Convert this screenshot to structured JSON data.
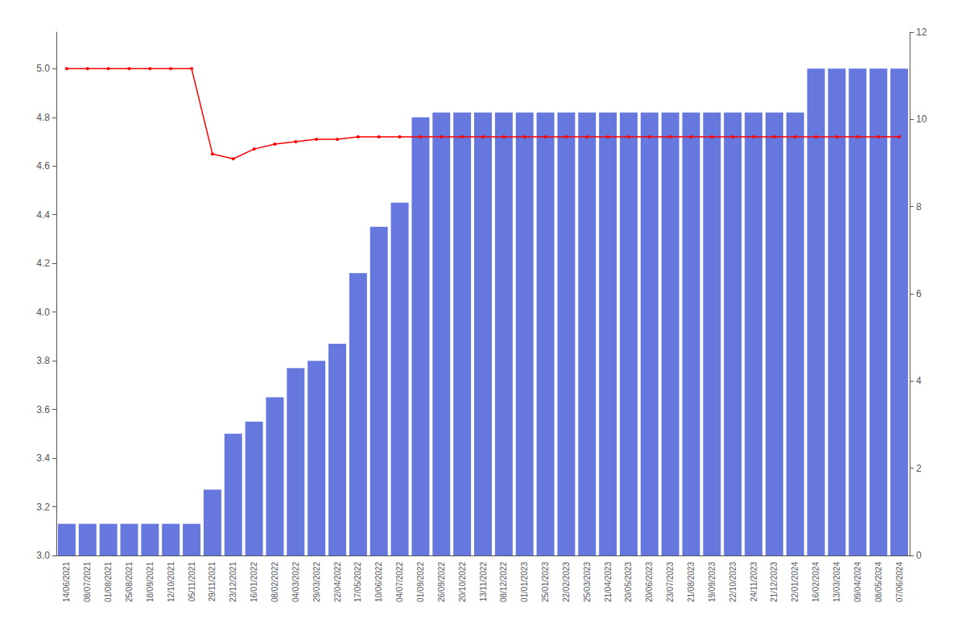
{
  "chart_data": {
    "type": "bar",
    "categories": [
      "14/06/2021",
      "08/07/2021",
      "01/08/2021",
      "25/08/2021",
      "18/09/2021",
      "12/10/2021",
      "05/11/2021",
      "29/11/2021",
      "23/12/2021",
      "16/01/2022",
      "08/02/2022",
      "04/03/2022",
      "29/03/2022",
      "22/04/2022",
      "17/05/2022",
      "10/06/2022",
      "04/07/2022",
      "01/09/2022",
      "26/09/2022",
      "20/10/2022",
      "13/11/2022",
      "08/12/2022",
      "01/01/2023",
      "25/01/2023",
      "22/02/2023",
      "25/03/2023",
      "21/04/2023",
      "20/05/2023",
      "20/06/2023",
      "23/07/2023",
      "21/08/2023",
      "19/09/2023",
      "22/10/2023",
      "24/11/2023",
      "21/12/2023",
      "22/01/2024",
      "16/02/2024",
      "13/03/2024",
      "09/04/2024",
      "08/05/2024",
      "07/06/2024"
    ],
    "series": [
      {
        "type": "bar",
        "color": "#6677dd",
        "values": [
          3.13,
          3.13,
          3.13,
          3.13,
          3.13,
          3.13,
          3.13,
          3.27,
          3.5,
          3.55,
          3.65,
          3.77,
          3.8,
          3.87,
          4.16,
          4.35,
          4.45,
          4.8,
          4.82,
          4.82,
          4.82,
          4.82,
          4.82,
          4.82,
          4.82,
          4.82,
          4.82,
          4.82,
          4.82,
          4.82,
          4.82,
          4.82,
          4.82,
          4.82,
          4.82,
          4.82,
          5.0,
          5.0,
          5.0,
          5.0,
          5.0
        ]
      },
      {
        "type": "line",
        "color": "#ff0000",
        "marker": "circle",
        "values": [
          5.0,
          5.0,
          5.0,
          5.0,
          5.0,
          5.0,
          5.0,
          4.65,
          4.63,
          4.67,
          4.69,
          4.7,
          4.71,
          4.71,
          4.72,
          4.72,
          4.72,
          4.72,
          4.72,
          4.72,
          4.72,
          4.72,
          4.72,
          4.72,
          4.72,
          4.72,
          4.72,
          4.72,
          4.72,
          4.72,
          4.72,
          4.72,
          4.72,
          4.72,
          4.72,
          4.72,
          4.72,
          4.72,
          4.72,
          4.72,
          4.72
        ]
      }
    ],
    "ylim": [
      3.0,
      5.15
    ],
    "yticks": [
      {
        "value": 3.0,
        "label": "3.0"
      },
      3.2,
      3.4,
      3.6,
      3.8,
      {
        "value": 4.0,
        "label": "4.0"
      },
      4.2,
      4.4,
      4.6,
      4.8,
      {
        "value": 5.0,
        "label": "5.0"
      }
    ],
    "y2lim": [
      0,
      12
    ],
    "y2ticks": [
      0,
      2,
      4,
      6,
      8,
      10,
      12
    ],
    "grid": false
  }
}
